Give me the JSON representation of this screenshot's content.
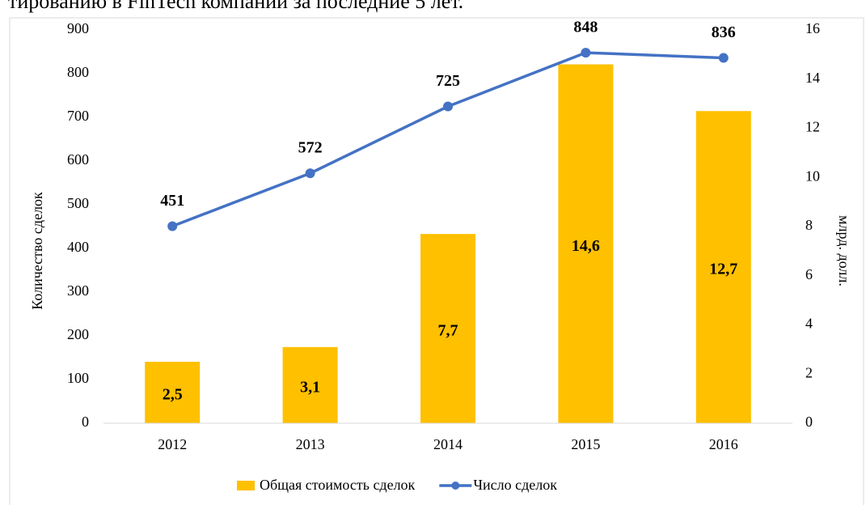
{
  "chart_data": {
    "type": "combo",
    "title": "тированию в FinTech компаний за последние 5 лет.",
    "y_label": "Количество сделок",
    "y2_label": "млрд. долл.",
    "categories": [
      "2012",
      "2013",
      "2014",
      "2015",
      "2016"
    ],
    "series": [
      {
        "name": "Общая стоимость сделок",
        "type": "bar",
        "axis": "y2",
        "color": "#ffc000",
        "values": [
          2.5,
          3.1,
          7.7,
          14.6,
          12.7
        ],
        "value_labels": [
          "2,5",
          "3,1",
          "7,7",
          "14,6",
          "12,7"
        ]
      },
      {
        "name": "Число сделок",
        "type": "line",
        "axis": "y",
        "color": "#4472c4",
        "values": [
          451,
          572,
          725,
          848,
          836
        ]
      }
    ],
    "ylim": [
      0,
      900
    ],
    "yticks": [
      0,
      100,
      200,
      300,
      400,
      500,
      600,
      700,
      800,
      900
    ],
    "y2lim": [
      0,
      16
    ],
    "y2ticks": [
      0,
      2,
      4,
      6,
      8,
      10,
      12,
      14,
      16
    ],
    "grid": false,
    "legend": "bottom"
  }
}
